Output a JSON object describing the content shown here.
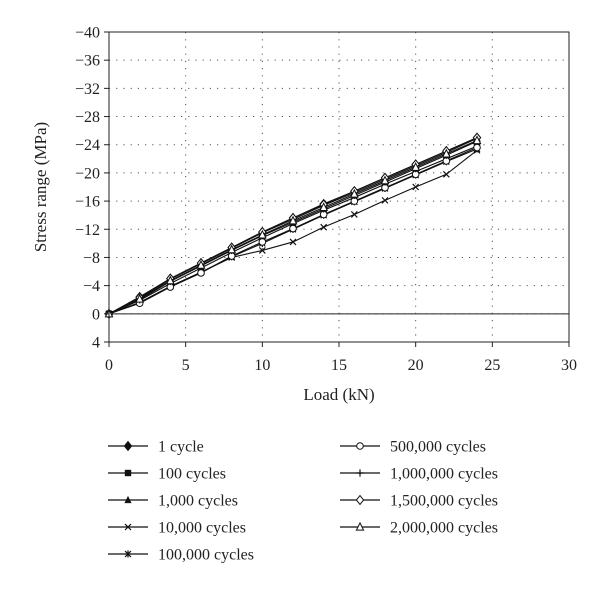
{
  "chart_data": {
    "type": "line",
    "xlabel": "Load (kN)",
    "ylabel": "Stress range (MPa)",
    "xlim": [
      0,
      30
    ],
    "ylim": [
      4,
      -40
    ],
    "y_axis_inverted": true,
    "x_ticks": [
      0,
      5,
      10,
      15,
      20,
      25,
      30
    ],
    "y_ticks": [
      -40,
      -36,
      -32,
      -28,
      -24,
      -20,
      -16,
      -12,
      -8,
      -4,
      0,
      4
    ],
    "y_tick_labels": [
      "−40",
      "−36",
      "−32",
      "−28",
      "−24",
      "−20",
      "−16",
      "−12",
      "−8",
      "−4",
      "0",
      "4"
    ],
    "grid": "dotted",
    "legend_position": "bottom",
    "x": [
      0,
      2,
      4,
      6,
      8,
      10,
      12,
      14,
      16,
      18,
      20,
      22,
      24
    ],
    "series": [
      {
        "name": "1 cycle",
        "marker": "filled-diamond",
        "values": [
          0,
          -2.4,
          -5.0,
          -7.2,
          -9.4,
          -11.6,
          -13.6,
          -15.6,
          -17.4,
          -19.3,
          -21.2,
          -23.1,
          -25.0
        ]
      },
      {
        "name": "100 cycles",
        "marker": "filled-square",
        "values": [
          0,
          -1.9,
          -4.3,
          -6.5,
          -8.7,
          -10.8,
          -12.8,
          -14.7,
          -16.5,
          -18.4,
          -20.2,
          -22.0,
          -23.8
        ]
      },
      {
        "name": "1,000 cycles",
        "marker": "filled-triangle",
        "values": [
          0,
          -2.2,
          -4.9,
          -7.1,
          -9.3,
          -11.5,
          -13.4,
          -15.4,
          -17.2,
          -19.1,
          -21.0,
          -22.9,
          -24.9
        ]
      },
      {
        "name": "10,000 cycles",
        "marker": "x",
        "values": [
          0,
          -1.6,
          -3.9,
          -5.9,
          -8.0,
          -9.0,
          -10.2,
          -12.3,
          -14.1,
          -16.1,
          -18.0,
          -19.8,
          -23.2
        ]
      },
      {
        "name": "100,000 cycles",
        "marker": "asterisk",
        "values": [
          0,
          -1.6,
          -3.9,
          -5.9,
          -8.1,
          -10.0,
          -12.0,
          -14.0,
          -15.9,
          -17.8,
          -19.7,
          -21.6,
          -23.4
        ]
      },
      {
        "name": "500,000 cycles",
        "marker": "open-circle",
        "values": [
          0,
          -1.5,
          -3.8,
          -5.8,
          -8.2,
          -10.2,
          -12.1,
          -14.1,
          -16.0,
          -17.9,
          -19.8,
          -21.7,
          -23.6
        ]
      },
      {
        "name": "1,000,000 cycles",
        "marker": "plus",
        "values": [
          0,
          -2.0,
          -4.6,
          -6.8,
          -9.0,
          -11.1,
          -13.0,
          -14.9,
          -16.8,
          -18.7,
          -20.6,
          -22.5,
          -24.5
        ]
      },
      {
        "name": "1,500,000 cycles",
        "marker": "open-diamond",
        "values": [
          0,
          -2.3,
          -5.0,
          -7.2,
          -9.4,
          -11.6,
          -13.6,
          -15.5,
          -17.4,
          -19.3,
          -21.2,
          -23.1,
          -25.0
        ]
      },
      {
        "name": "2,000,000 cycles",
        "marker": "open-triangle",
        "values": [
          0,
          -2.1,
          -4.7,
          -6.9,
          -9.1,
          -11.2,
          -13.2,
          -15.1,
          -17.0,
          -18.9,
          -20.8,
          -22.7,
          -24.6
        ]
      }
    ]
  }
}
